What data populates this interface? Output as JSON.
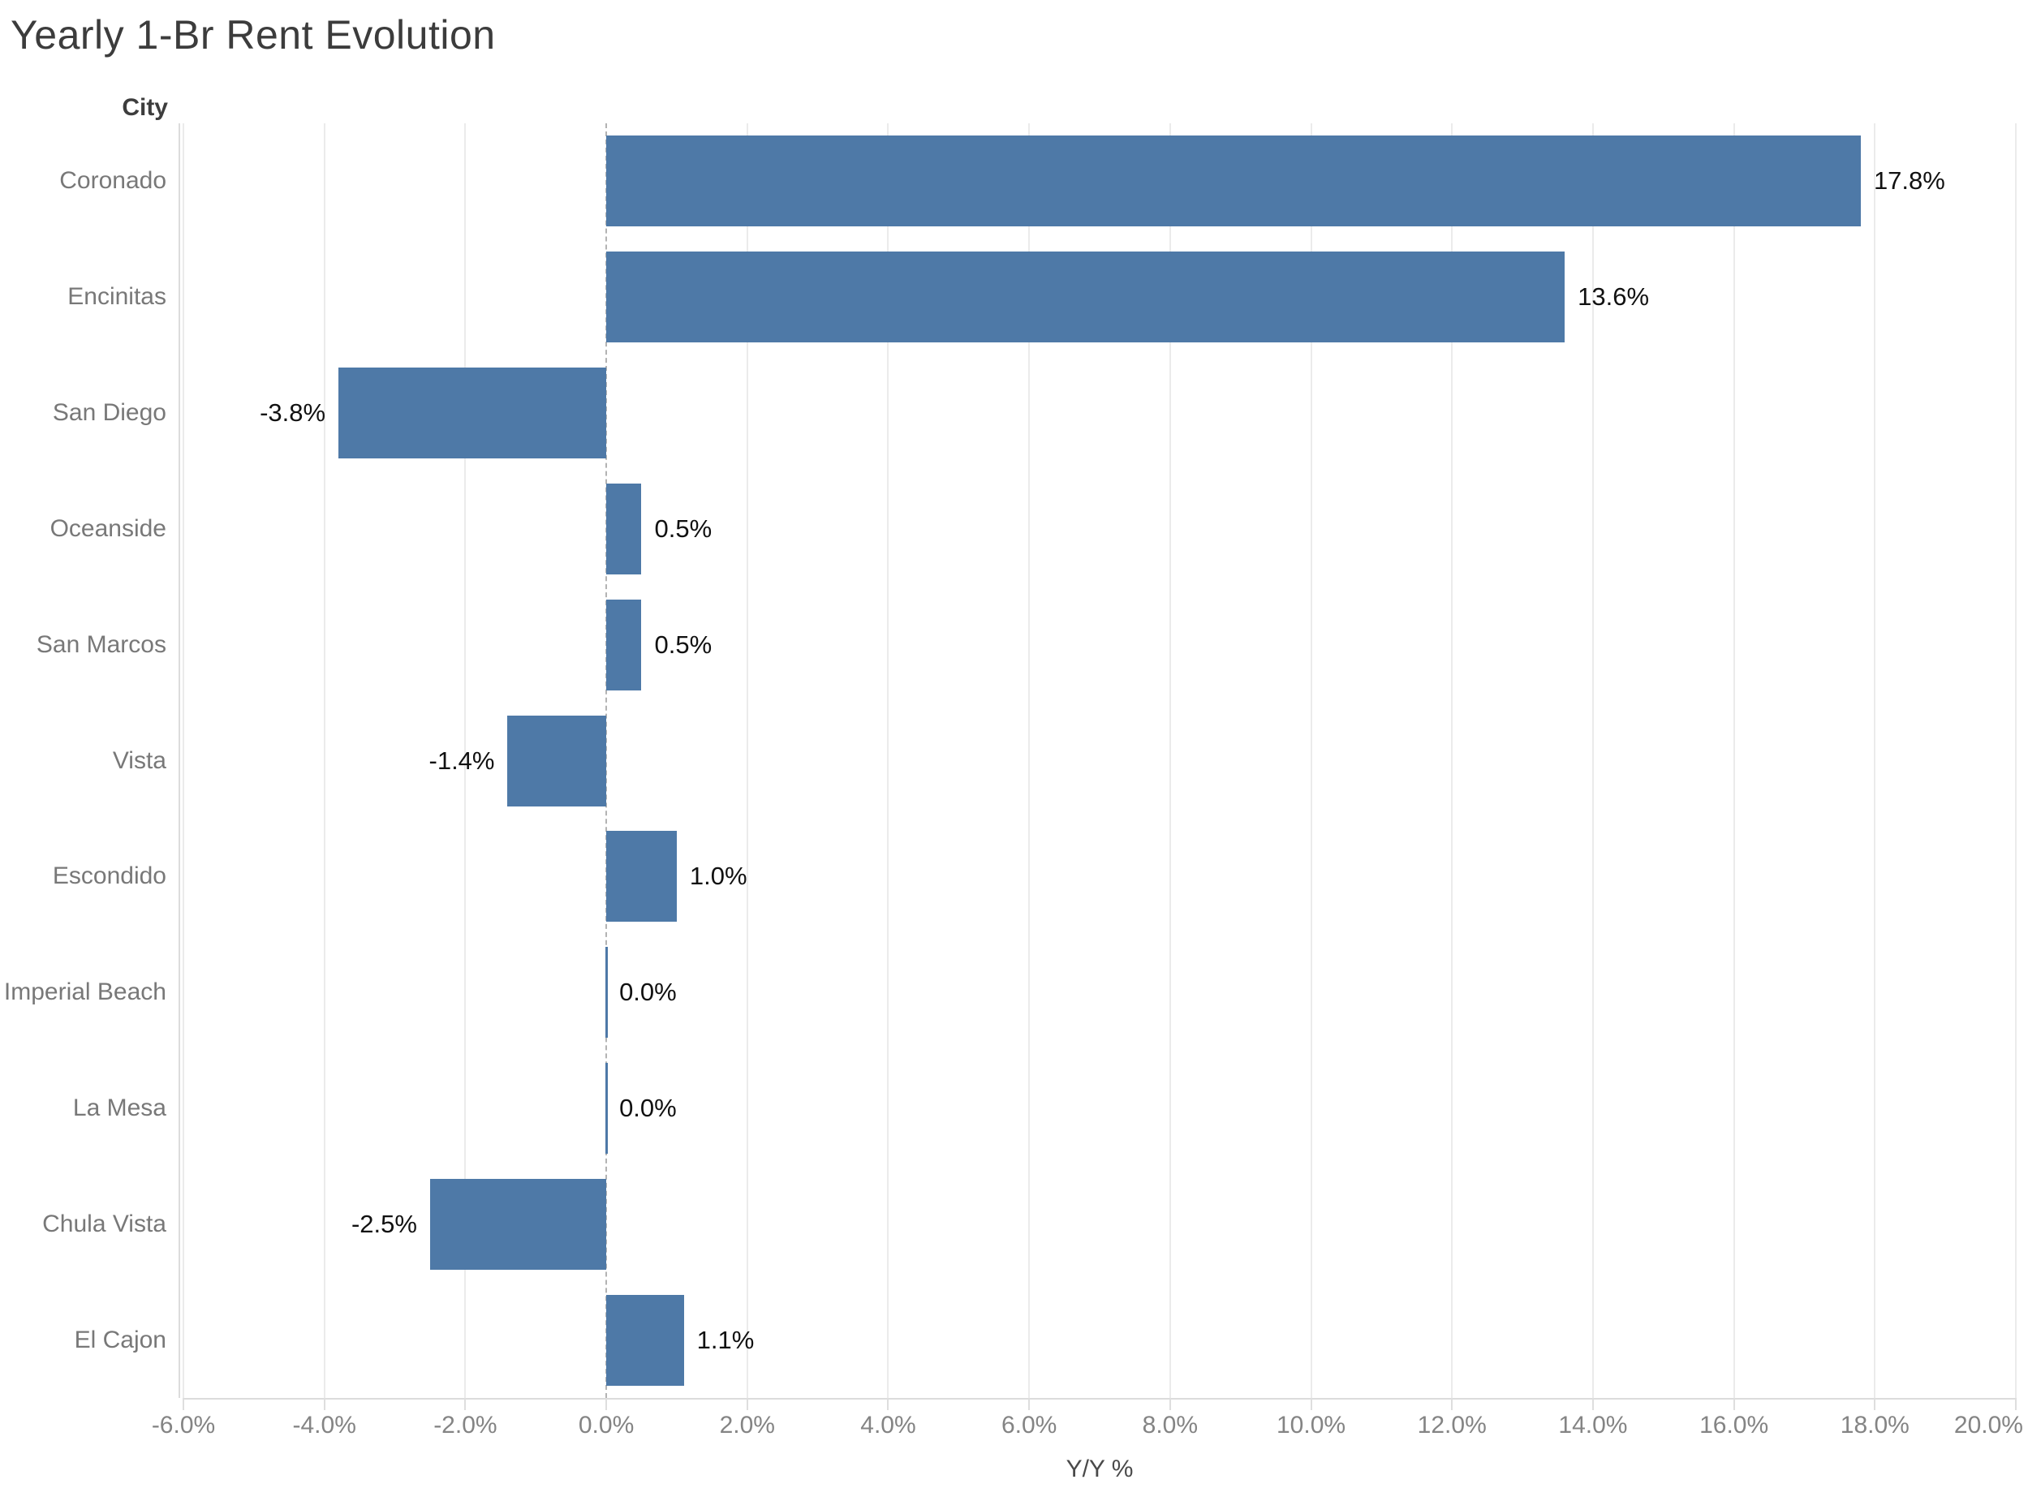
{
  "title": "Yearly 1-Br Rent Evolution",
  "row_header": "City",
  "axis": {
    "label": "Y/Y %",
    "min": -6,
    "max": 20,
    "tick_values": [
      -6,
      -4,
      -2,
      0,
      2,
      4,
      6,
      8,
      10,
      12,
      14,
      16,
      18,
      20
    ],
    "tick_labels": [
      "-6.0%",
      "-4.0%",
      "-2.0%",
      "0.0%",
      "2.0%",
      "4.0%",
      "6.0%",
      "8.0%",
      "10.0%",
      "12.0%",
      "14.0%",
      "16.0%",
      "18.0%",
      "20.0%"
    ]
  },
  "colors": {
    "bar": "#4e79a7",
    "gridline": "#ebebeb",
    "zero_line": "#b3b3b3",
    "axis_text": "#848484",
    "category_text": "#787878",
    "value_text": "#111111",
    "title_text": "#3c3c3c"
  },
  "chart_data": {
    "type": "bar",
    "orientation": "horizontal",
    "title": "Yearly 1-Br Rent Evolution",
    "xlabel": "Y/Y %",
    "ylabel": "City",
    "xlim": [
      -6,
      20
    ],
    "grid": true,
    "zero_line": "dashed",
    "categories": [
      "Coronado",
      "Encinitas",
      "San Diego",
      "Oceanside",
      "San Marcos",
      "Vista",
      "Escondido",
      "Imperial Beach",
      "La Mesa",
      "Chula Vista",
      "El Cajon"
    ],
    "values": [
      17.8,
      13.6,
      -3.8,
      0.5,
      0.5,
      -1.4,
      1.0,
      0.0,
      0.0,
      -2.5,
      1.1
    ],
    "value_labels": [
      "17.8%",
      "13.6%",
      "-3.8%",
      "0.5%",
      "0.5%",
      "-1.4%",
      "1.0%",
      "0.0%",
      "0.0%",
      "-2.5%",
      "1.1%"
    ]
  }
}
